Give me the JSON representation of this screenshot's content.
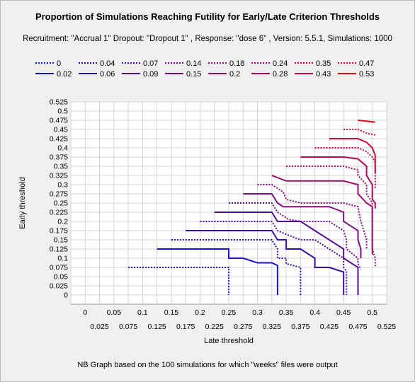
{
  "chart_data": {
    "type": "line",
    "title": "Proportion of Simulations Reaching Futility for Early/Late Criterion Thresholds",
    "subtitle": "Recruitment: \"Accrual 1\" Dropout: \"Dropout 1\" , Response: \"dose 6\" , Version: 5.5.1, Simulations: 1000",
    "footnote": "NB Graph based on the 100 simulations for which \"weeks\" files were output",
    "xlabel": "Late threshold",
    "ylabel": "Early threshold",
    "xlim": [
      -0.025,
      0.525
    ],
    "ylim": [
      -0.025,
      0.525
    ],
    "grid": true,
    "legend_position": "top",
    "x_ticks_upper": [
      "0",
      "0.05",
      "0.1",
      "0.15",
      "0.2",
      "0.25",
      "0.3",
      "0.35",
      "0.4",
      "0.45",
      "0.5"
    ],
    "x_ticks_lower": [
      "0.025",
      "0.075",
      "0.125",
      "0.175",
      "0.225",
      "0.275",
      "0.325",
      "0.375",
      "0.425",
      "0.475",
      "0.525"
    ],
    "y_ticks": [
      "0",
      "0.025",
      "0.05",
      "0.075",
      "0.1",
      "0.125",
      "0.15",
      "0.175",
      "0.2",
      "0.225",
      "0.25",
      "0.275",
      "0.3",
      "0.325",
      "0.35",
      "0.375",
      "0.4",
      "0.425",
      "0.45",
      "0.475",
      "0.5",
      "0.525"
    ],
    "series": [
      {
        "name": "0",
        "color": "#1a12cc",
        "dash": true,
        "points": [
          [
            0.075,
            0.075
          ],
          [
            0.25,
            0.075
          ],
          [
            0.25,
            0.0
          ]
        ]
      },
      {
        "name": "0.02",
        "color": "#1a12cc",
        "dash": false,
        "points": [
          [
            0.125,
            0.125
          ],
          [
            0.25,
            0.125
          ],
          [
            0.25,
            0.1
          ],
          [
            0.275,
            0.1
          ],
          [
            0.3,
            0.0875
          ],
          [
            0.325,
            0.0875
          ],
          [
            0.335,
            0.08
          ],
          [
            0.335,
            0.0
          ]
        ]
      },
      {
        "name": "0.04",
        "color": "#2e10b4",
        "dash": true,
        "points": [
          [
            0.15,
            0.15
          ],
          [
            0.325,
            0.15
          ],
          [
            0.335,
            0.125
          ],
          [
            0.335,
            0.1
          ],
          [
            0.35,
            0.1
          ],
          [
            0.35,
            0.085
          ],
          [
            0.375,
            0.075
          ],
          [
            0.375,
            0.0
          ]
        ]
      },
      {
        "name": "0.06",
        "color": "#3510a8",
        "dash": false,
        "points": [
          [
            0.175,
            0.175
          ],
          [
            0.325,
            0.175
          ],
          [
            0.335,
            0.15
          ],
          [
            0.35,
            0.15
          ],
          [
            0.35,
            0.125
          ],
          [
            0.375,
            0.125
          ],
          [
            0.4,
            0.1
          ],
          [
            0.4,
            0.075
          ],
          [
            0.425,
            0.075
          ],
          [
            0.45,
            0.0625
          ],
          [
            0.45,
            0.0
          ]
        ]
      },
      {
        "name": "0.07",
        "color": "#48109e",
        "dash": true,
        "points": [
          [
            0.2,
            0.2
          ],
          [
            0.325,
            0.2
          ],
          [
            0.335,
            0.175
          ],
          [
            0.35,
            0.165
          ],
          [
            0.375,
            0.15
          ],
          [
            0.4,
            0.15
          ],
          [
            0.425,
            0.125
          ],
          [
            0.45,
            0.1
          ],
          [
            0.45,
            0.075
          ],
          [
            0.455,
            0.065
          ],
          [
            0.455,
            0.0
          ]
        ]
      },
      {
        "name": "0.09",
        "color": "#55108f",
        "dash": false,
        "points": [
          [
            0.225,
            0.225
          ],
          [
            0.325,
            0.225
          ],
          [
            0.335,
            0.2
          ],
          [
            0.375,
            0.2
          ],
          [
            0.4,
            0.175
          ],
          [
            0.425,
            0.15
          ],
          [
            0.45,
            0.125
          ],
          [
            0.45,
            0.1
          ],
          [
            0.475,
            0.075
          ],
          [
            0.475,
            0.0
          ]
        ]
      },
      {
        "name": "0.14",
        "color": "#6a1089",
        "dash": true,
        "points": [
          [
            0.25,
            0.25
          ],
          [
            0.325,
            0.25
          ],
          [
            0.335,
            0.225
          ],
          [
            0.355,
            0.205
          ],
          [
            0.375,
            0.2
          ],
          [
            0.425,
            0.2
          ],
          [
            0.45,
            0.175
          ],
          [
            0.455,
            0.15
          ],
          [
            0.455,
            0.125
          ],
          [
            0.475,
            0.1
          ],
          [
            0.475,
            0.085
          ],
          [
            0.48,
            0.07
          ]
        ]
      },
      {
        "name": "0.15",
        "color": "#7a0f7f",
        "dash": false,
        "points": [
          [
            0.275,
            0.275
          ],
          [
            0.325,
            0.275
          ],
          [
            0.335,
            0.25
          ],
          [
            0.345,
            0.24
          ],
          [
            0.38,
            0.24
          ],
          [
            0.425,
            0.24
          ],
          [
            0.45,
            0.225
          ],
          [
            0.45,
            0.2
          ],
          [
            0.475,
            0.175
          ],
          [
            0.475,
            0.15
          ],
          [
            0.48,
            0.125
          ],
          [
            0.48,
            0.1
          ]
        ]
      },
      {
        "name": "0.18",
        "color": "#8a0e79",
        "dash": true,
        "points": [
          [
            0.3,
            0.3
          ],
          [
            0.325,
            0.3
          ],
          [
            0.345,
            0.28
          ],
          [
            0.35,
            0.26
          ],
          [
            0.375,
            0.25
          ],
          [
            0.45,
            0.25
          ],
          [
            0.475,
            0.24
          ],
          [
            0.48,
            0.2
          ],
          [
            0.485,
            0.175
          ],
          [
            0.49,
            0.15
          ],
          [
            0.49,
            0.125
          ]
        ]
      },
      {
        "name": "0.2",
        "color": "#960d6c",
        "dash": false,
        "points": [
          [
            0.325,
            0.325
          ],
          [
            0.35,
            0.31
          ],
          [
            0.375,
            0.31
          ],
          [
            0.45,
            0.31
          ],
          [
            0.475,
            0.3
          ],
          [
            0.475,
            0.275
          ],
          [
            0.49,
            0.25
          ],
          [
            0.5,
            0.24
          ],
          [
            0.5,
            0.2
          ],
          [
            0.5,
            0.175
          ],
          [
            0.5,
            0.125
          ],
          [
            0.5,
            0.11
          ]
        ]
      },
      {
        "name": "0.24",
        "color": "#a20c62",
        "dash": true,
        "points": [
          [
            0.35,
            0.35
          ],
          [
            0.45,
            0.35
          ],
          [
            0.475,
            0.34
          ],
          [
            0.475,
            0.325
          ],
          [
            0.49,
            0.3
          ],
          [
            0.49,
            0.275
          ],
          [
            0.5,
            0.25
          ],
          [
            0.5,
            0.125
          ],
          [
            0.505,
            0.1
          ],
          [
            0.505,
            0.075
          ]
        ]
      },
      {
        "name": "0.28",
        "color": "#ae0b58",
        "dash": false,
        "points": [
          [
            0.375,
            0.375
          ],
          [
            0.45,
            0.375
          ],
          [
            0.475,
            0.37
          ],
          [
            0.49,
            0.35
          ],
          [
            0.49,
            0.325
          ],
          [
            0.5,
            0.3
          ],
          [
            0.5,
            0.26
          ],
          [
            0.505,
            0.25
          ],
          [
            0.505,
            0.235
          ]
        ]
      },
      {
        "name": "0.35",
        "color": "#bb0a4c",
        "dash": true,
        "points": [
          [
            0.4,
            0.4
          ],
          [
            0.475,
            0.4
          ],
          [
            0.49,
            0.39
          ],
          [
            0.5,
            0.375
          ],
          [
            0.505,
            0.36
          ],
          [
            0.505,
            0.3
          ],
          [
            0.505,
            0.29
          ]
        ]
      },
      {
        "name": "0.43",
        "color": "#cb0a3c",
        "dash": false,
        "points": [
          [
            0.425,
            0.425
          ],
          [
            0.475,
            0.425
          ],
          [
            0.49,
            0.415
          ],
          [
            0.5,
            0.4
          ],
          [
            0.505,
            0.38
          ],
          [
            0.505,
            0.33
          ]
        ]
      },
      {
        "name": "0.47",
        "color": "#d80930",
        "dash": true,
        "points": [
          [
            0.45,
            0.45
          ],
          [
            0.475,
            0.45
          ],
          [
            0.49,
            0.44
          ],
          [
            0.505,
            0.435
          ]
        ]
      },
      {
        "name": "0.53",
        "color": "#e80a10",
        "dash": false,
        "points": [
          [
            0.475,
            0.475
          ],
          [
            0.505,
            0.47
          ]
        ]
      }
    ]
  }
}
